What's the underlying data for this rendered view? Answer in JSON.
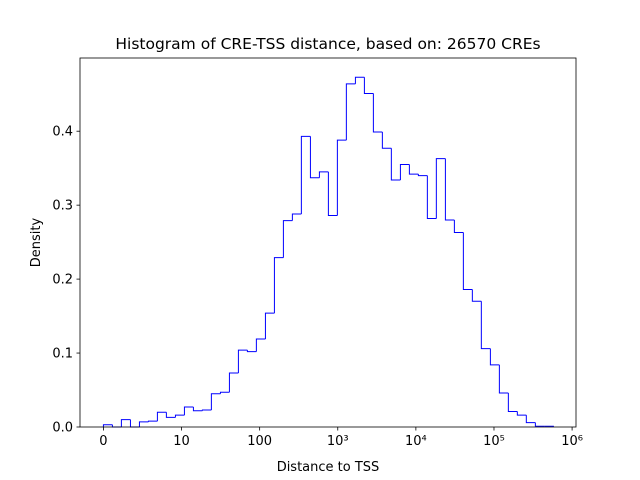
{
  "chart_data": {
    "type": "histogram",
    "title": "Histogram of CRE-TSS distance, based on: 26570 CREs",
    "xlabel": "Distance to TSS",
    "ylabel": "Density",
    "color": "#0000ff",
    "bins": [
      0,
      0.115,
      0.23,
      0.346,
      0.461,
      0.576,
      0.691,
      0.806,
      0.922,
      1.037,
      1.152,
      1.267,
      1.382,
      1.498,
      1.613,
      1.728,
      1.843,
      1.958,
      2.074,
      2.189,
      2.304,
      2.419,
      2.534,
      2.65,
      2.765,
      2.88,
      2.995,
      3.11,
      3.226,
      3.341,
      3.456,
      3.571,
      3.686,
      3.802,
      3.917,
      4.032,
      4.147,
      4.262,
      4.378,
      4.493,
      4.608,
      4.723,
      4.838,
      4.954,
      5.069,
      5.184,
      5.299,
      5.414,
      5.53,
      5.645,
      5.76
    ],
    "values": [
      0.003,
      0.0,
      0.01,
      0.0,
      0.007,
      0.008,
      0.02,
      0.013,
      0.016,
      0.027,
      0.022,
      0.023,
      0.045,
      0.047,
      0.073,
      0.104,
      0.102,
      0.119,
      0.154,
      0.229,
      0.279,
      0.288,
      0.393,
      0.337,
      0.345,
      0.286,
      0.388,
      0.464,
      0.473,
      0.451,
      0.399,
      0.377,
      0.334,
      0.355,
      0.342,
      0.34,
      0.282,
      0.363,
      0.28,
      0.263,
      0.186,
      0.17,
      0.106,
      0.084,
      0.046,
      0.021,
      0.016,
      0.006,
      0.001,
      0.001
    ],
    "xlim": [
      -0.3,
      6.05
    ],
    "ylim": [
      0,
      0.499
    ],
    "xticks": [
      0,
      {
        "value": 1,
        "label": "10"
      },
      {
        "value": 2,
        "label": "100"
      },
      {
        "value": 3,
        "label": "10³"
      },
      {
        "value": 4,
        "label": "10⁴"
      },
      {
        "value": 5,
        "label": "10⁵"
      },
      {
        "value": 6,
        "label": "10⁶"
      }
    ],
    "yticks": [
      {
        "value": 0,
        "label": "0.0"
      },
      0.1,
      0.2,
      0.3,
      0.4
    ],
    "grid": false
  }
}
